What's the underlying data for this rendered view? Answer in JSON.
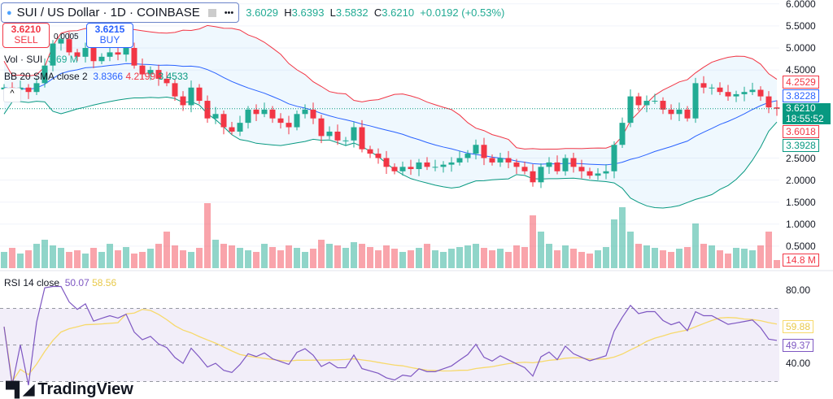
{
  "header": {
    "symbol": "SUI / US Dollar · 1D · COINBASE",
    "more": "•••"
  },
  "ohlc": {
    "o_label": "O",
    "o": "3.6029",
    "h_label": "H",
    "h": "3.6393",
    "l_label": "L",
    "l": "3.5832",
    "c_label": "C",
    "c": "3.6210",
    "change": "+0.0192 (+0.53%)"
  },
  "trade": {
    "sell_price": "3.6210",
    "sell_label": "SELL",
    "buy_price": "3.6215",
    "buy_label": "BUY",
    "spread": "0.0005"
  },
  "legend": {
    "vol_label": "Vol · SUI",
    "vol_value": "3.69 M",
    "bb_label": "BB 20 SMA close 2",
    "bb_basis": "3.8366",
    "bb_upper": "4.2199",
    "bb_lower": "3.4533",
    "rsi_label": "RSI 14 close",
    "rsi_value": "50.07",
    "rsi_ma": "58.56"
  },
  "price_axis": [
    "6.0000",
    "5.5000",
    "5.0000",
    "4.5000",
    "2.5000",
    "2.0000",
    "1.5000",
    "1.0000",
    "0.5000"
  ],
  "rsi_axis": [
    "80.00",
    "40.00"
  ],
  "tags": {
    "bb_upper": "4.2529",
    "bb_basis": "3.8228",
    "last": "3.6210",
    "countdown": "18:55:52",
    "prev": "3.6018",
    "bb_lower": "3.3928",
    "volume": "14.8 M",
    "rsi_ma": "59.88",
    "rsi": "49.37"
  },
  "colors": {
    "up": "#22ab94",
    "down": "#f23645",
    "bb_basis": "#2962ff",
    "bb_upper": "#f23645",
    "bb_lower": "#089981",
    "rsi": "#7e57c2",
    "rsi_ma": "#f7d96b"
  },
  "brand": "TradingView",
  "chart_data": {
    "type": "candlestick",
    "closes": [
      4.1,
      4.05,
      4.1,
      4.0,
      4.2,
      4.6,
      5.1,
      5.2,
      4.9,
      4.8,
      5.0,
      4.7,
      4.8,
      4.9,
      4.85,
      5.0,
      4.6,
      4.4,
      4.5,
      4.3,
      4.2,
      3.9,
      3.7,
      4.1,
      3.8,
      3.4,
      3.5,
      3.2,
      3.1,
      3.3,
      3.6,
      3.5,
      3.6,
      3.4,
      3.3,
      3.2,
      3.5,
      3.6,
      3.4,
      3.0,
      3.1,
      2.9,
      2.9,
      3.2,
      2.7,
      2.6,
      2.5,
      2.3,
      2.2,
      2.3,
      2.25,
      2.4,
      2.3,
      2.3,
      2.35,
      2.4,
      2.5,
      2.6,
      2.8,
      2.5,
      2.4,
      2.5,
      2.4,
      2.3,
      2.2,
      1.95,
      2.3,
      2.4,
      2.2,
      2.5,
      2.3,
      2.2,
      2.1,
      2.15,
      2.2,
      2.8,
      3.3,
      3.9,
      3.7,
      3.8,
      3.8,
      3.6,
      3.5,
      3.6,
      3.4,
      4.2,
      4.1,
      4.1,
      4.0,
      3.9,
      3.95,
      4.0,
      4.05,
      3.9,
      3.65,
      3.62
    ],
    "volumes": [
      20,
      25,
      18,
      22,
      30,
      35,
      28,
      25,
      20,
      22,
      18,
      25,
      20,
      30,
      22,
      26,
      18,
      20,
      24,
      30,
      45,
      28,
      22,
      20,
      25,
      80,
      35,
      30,
      28,
      25,
      22,
      20,
      30,
      26,
      22,
      28,
      25,
      20,
      24,
      35,
      30,
      28,
      25,
      32,
      30,
      26,
      22,
      28,
      24,
      20,
      22,
      25,
      30,
      22,
      20,
      24,
      26,
      28,
      30,
      25,
      22,
      24,
      20,
      28,
      26,
      65,
      45,
      30,
      22,
      28,
      24,
      20,
      18,
      22,
      26,
      60,
      75,
      45,
      30,
      28,
      25,
      22,
      20,
      24,
      26,
      55,
      30,
      28,
      22,
      18,
      25,
      24,
      22,
      28,
      45,
      10
    ],
    "price_range": [
      0,
      6
    ],
    "rsi_range": [
      30,
      80
    ],
    "rsi_bands": [
      30,
      50,
      70
    ]
  }
}
